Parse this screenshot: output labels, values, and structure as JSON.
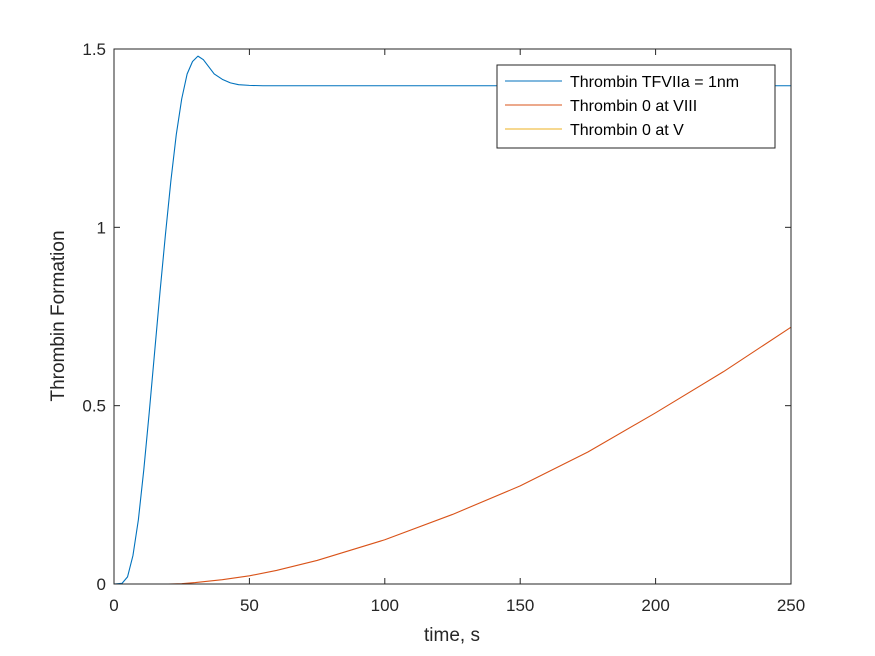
{
  "chart_data": {
    "type": "line",
    "title": "",
    "xlabel": "time, s",
    "ylabel": "Thrombin Formation",
    "xlim": [
      0,
      250
    ],
    "ylim": [
      0,
      1.5
    ],
    "xticks": [
      0,
      50,
      100,
      150,
      200,
      250
    ],
    "xtick_labels": [
      "0",
      "50",
      "100",
      "150",
      "200",
      "250"
    ],
    "yticks": [
      0,
      0.5,
      1,
      1.5
    ],
    "ytick_labels": [
      "0",
      "0.5",
      "1",
      "1.5"
    ],
    "grid": false,
    "legend_position": "top-right",
    "series": [
      {
        "name": "Thrombin TFVIIa = 1nm",
        "color": "#0072BD",
        "x": [
          0,
          3,
          5,
          7,
          9,
          11,
          13,
          15,
          17,
          19,
          21,
          23,
          25,
          27,
          29,
          31,
          33,
          35,
          37,
          40,
          43,
          46,
          50,
          55,
          60,
          70,
          80,
          100,
          150,
          200,
          250
        ],
        "y": [
          0,
          0.002,
          0.02,
          0.08,
          0.18,
          0.32,
          0.48,
          0.65,
          0.82,
          0.98,
          1.13,
          1.26,
          1.36,
          1.43,
          1.465,
          1.48,
          1.47,
          1.45,
          1.43,
          1.415,
          1.405,
          1.4,
          1.398,
          1.397,
          1.397,
          1.397,
          1.397,
          1.397,
          1.397,
          1.397,
          1.397
        ]
      },
      {
        "name": "Thrombin 0 at VIII",
        "color": "#D95319",
        "x": [
          0,
          10,
          20,
          25,
          30,
          40,
          50,
          60,
          75,
          100,
          125,
          150,
          175,
          200,
          225,
          250
        ],
        "y": [
          0,
          0,
          0,
          0.001,
          0.004,
          0.012,
          0.023,
          0.038,
          0.066,
          0.124,
          0.195,
          0.275,
          0.37,
          0.48,
          0.595,
          0.72
        ]
      },
      {
        "name": "Thrombin 0 at V",
        "color": "#EDB120",
        "x": [
          0,
          250
        ],
        "y": [
          0,
          0
        ]
      }
    ]
  }
}
